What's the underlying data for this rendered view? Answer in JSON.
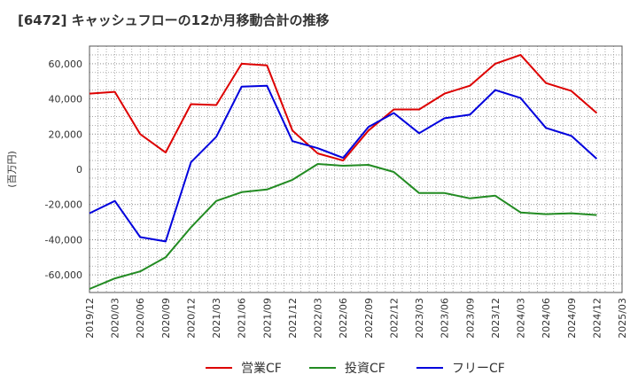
{
  "chart_data": {
    "type": "line",
    "title": "[6472]  キャッシュフローの12か月移動合計の推移",
    "ylabel": "(百万円)",
    "xlabel": "",
    "ylim": [
      -70000,
      70000
    ],
    "yticks": [
      -60000,
      -40000,
      -20000,
      0,
      20000,
      40000,
      60000
    ],
    "ytick_labels": [
      "-60,000",
      "-40,000",
      "-20,000",
      "0",
      "20,000",
      "40,000",
      "60,000"
    ],
    "xticks": [
      "2019/12",
      "2020/03",
      "2020/06",
      "2020/09",
      "2020/12",
      "2021/03",
      "2021/06",
      "2021/09",
      "2021/12",
      "2022/03",
      "2022/06",
      "2022/09",
      "2022/12",
      "2023/03",
      "2023/06",
      "2023/09",
      "2023/12",
      "2024/03",
      "2024/06",
      "2024/09",
      "2024/12",
      "2025/03"
    ],
    "grid": true,
    "legend_position": "bottom-center",
    "series": [
      {
        "name": "営業CF",
        "color": "#dd0000",
        "values": [
          43000,
          44000,
          20000,
          9500,
          37000,
          36500,
          60000,
          59000,
          22000,
          9000,
          5000,
          22000,
          34000,
          34000,
          43000,
          47500,
          60000,
          65000,
          49000,
          44500,
          32000
        ]
      },
      {
        "name": "投資CF",
        "color": "#228b22",
        "values": [
          -68000,
          -62000,
          -58000,
          -50000,
          -33000,
          -18000,
          -13000,
          -11500,
          -6000,
          3000,
          2000,
          2500,
          -1500,
          -13500,
          -13500,
          -16500,
          -15000,
          -24500,
          -25500,
          -25000,
          -26000
        ]
      },
      {
        "name": "フリーCF",
        "color": "#0000dd",
        "values": [
          -25000,
          -18000,
          -38500,
          -41000,
          4000,
          18500,
          47000,
          47500,
          16000,
          12000,
          6500,
          24000,
          32000,
          20500,
          29000,
          31000,
          45000,
          40500,
          23500,
          19000,
          6000
        ]
      }
    ]
  }
}
